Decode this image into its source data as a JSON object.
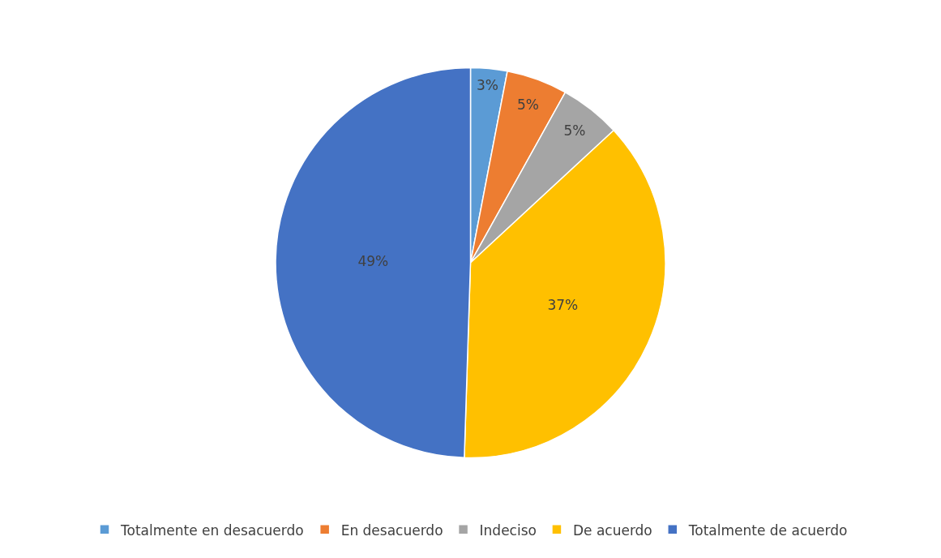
{
  "chart_data": {
    "type": "pie",
    "categories": [
      "Totalmente en desacuerdo",
      "En desacuerdo",
      "Indeciso",
      "De acuerdo",
      "Totalmente de acuerdo"
    ],
    "values": [
      3,
      5,
      5,
      37,
      49
    ],
    "colors": [
      "#5b9bd5",
      "#ed7d31",
      "#a5a5a5",
      "#ffc000",
      "#4472c4"
    ],
    "value_labels": [
      "3%",
      "5%",
      "5%",
      "37%",
      "49%"
    ],
    "legend": "bottom"
  }
}
